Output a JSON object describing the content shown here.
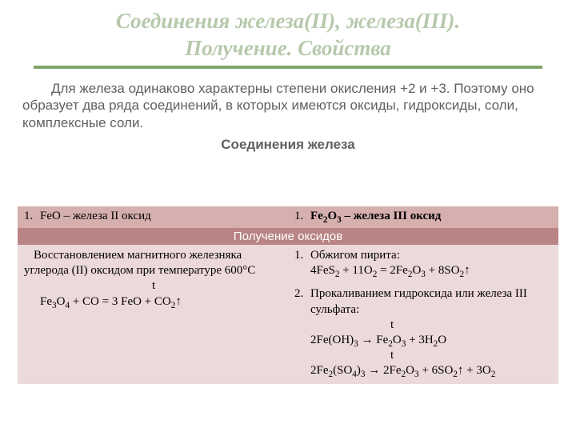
{
  "colors": {
    "title": "#b6c9ab",
    "rule": "#7fa66b",
    "body_text": "#606060",
    "header_row_bg": "#d6afaf",
    "section_row_bg": "#b98484",
    "methods_row_bg": "#ecd9d9"
  },
  "title_line1": "Соединения железа(II), железа(III).",
  "title_line2": "Получение. Свойства",
  "intro": "Для железа одинаково характерны степени окисления  +2 и  +3. Поэтому оно образует два ряда соединений, в которых имеются оксиды, гидроксиды, соли, комплексные соли.",
  "subhead": "Соединения железа",
  "table": {
    "header": {
      "left_num": "1.",
      "left_text": "FeO – железа II оксид",
      "right_num": "1.",
      "right_text_html": "Fe<sub>2</sub>O<sub>3</sub> – железа III оксид"
    },
    "section_label": "Получение оксидов",
    "left_method": {
      "line1": "Восстановлением магнитного железняка углерода (II) оксидом при температуре 600°С",
      "t_label": "t",
      "eq_html": "Fe<sub>3</sub>O<sub>4</sub> + CO = 3 FeO + CO<sub>2</sub>↑"
    },
    "right_methods": {
      "m1": {
        "num": "1.",
        "label": "Обжигом пирита:",
        "eq_html": "4FeS<sub>2</sub> + 11O<sub>2</sub> = 2Fe<sub>2</sub>O<sub>3</sub> + 8SO<sub>2</sub>↑"
      },
      "m2": {
        "num": "2.",
        "label": "Прокаливанием гидроксида или железа III сульфата:",
        "t_label": "t",
        "eq1_html": "2Fe(OH)<sub>3</sub> → Fe<sub>2</sub>O<sub>3</sub> + 3H<sub>2</sub>O",
        "eq2_html": "2Fe<sub>2</sub>(SO<sub>4</sub>)<sub>3</sub> → 2Fe<sub>2</sub>O<sub>3</sub> + 6SO<sub>2</sub>↑ + 3O<sub>2</sub>"
      }
    }
  }
}
